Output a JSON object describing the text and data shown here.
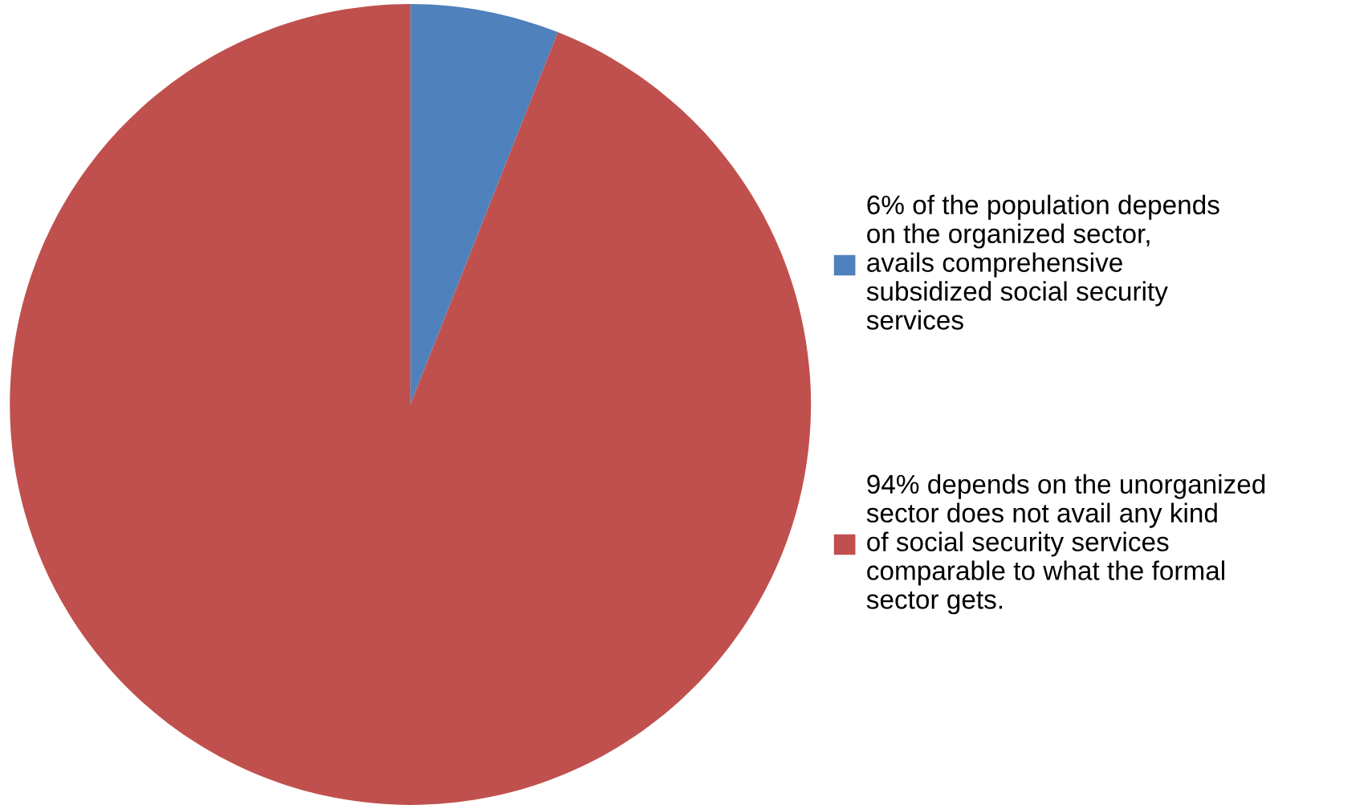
{
  "chart_data": {
    "type": "pie",
    "categories": [
      "6% of the population depends on the organized sector, avails comprehensive subsidized social security services",
      "94% depends on the unorganized sector does not avail any kind of social security services comparable to what the formal sector gets."
    ],
    "values": [
      6,
      94
    ],
    "colors": [
      "#4f81bd",
      "#c0504d"
    ],
    "legend": "right"
  }
}
